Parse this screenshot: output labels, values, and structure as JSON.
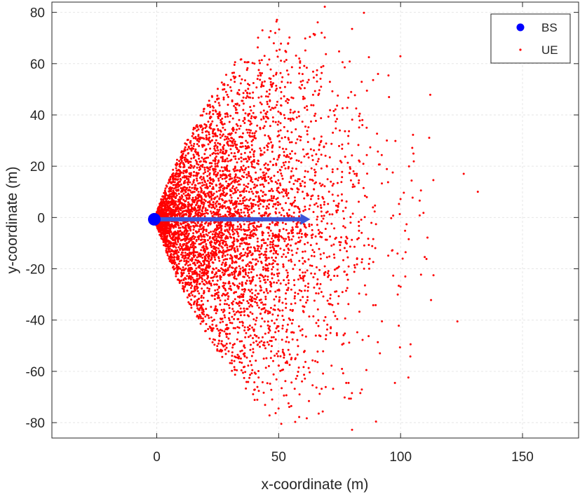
{
  "chart_data": {
    "type": "scatter",
    "title": "",
    "xlabel": "x-coordinate (m)",
    "ylabel": "y-coordinate (m)",
    "xlim": [
      -43,
      173
    ],
    "ylim": [
      -86,
      84
    ],
    "xticks": [
      0,
      50,
      100,
      150
    ],
    "yticks": [
      -80,
      -60,
      -40,
      -20,
      0,
      20,
      40,
      60,
      80
    ],
    "xtick_labels": [
      "0",
      "50",
      "100",
      "150"
    ],
    "ytick_labels": [
      "-80",
      "-60",
      "-40",
      "-20",
      "0",
      "20",
      "40",
      "60",
      "80"
    ],
    "grid": true,
    "legend_position": "top-right",
    "series": [
      {
        "name": "BS",
        "marker": "filled-circle",
        "color": "#0000ff",
        "points": [
          [
            -1,
            -0.7
          ]
        ]
      },
      {
        "name": "UE",
        "marker": "dot",
        "color": "#ff0000",
        "distribution": "dense wedge of points extending from the BS toward +x, spreading from about x=0 to x=130 and y=-85 to y=84"
      }
    ],
    "annotations": [
      {
        "type": "arrow",
        "color": "#3d56d8",
        "from": [
          -1,
          -0.7
        ],
        "to": [
          63,
          -0.7
        ]
      }
    ]
  }
}
